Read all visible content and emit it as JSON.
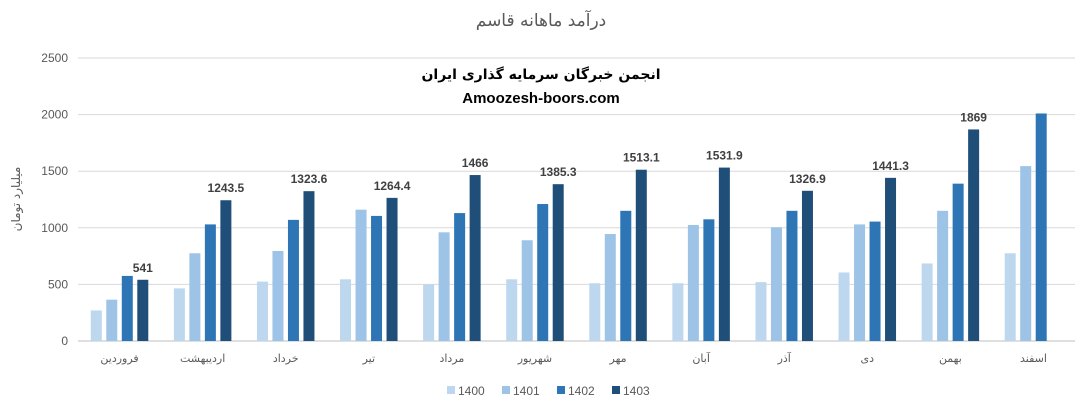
{
  "chart_data": {
    "type": "bar",
    "title": "درآمد ماهانه قاسم",
    "ylabel": "میلیارد تومان",
    "xlabel": "",
    "ylim": [
      0,
      2500
    ],
    "yticks": [
      0,
      500,
      1000,
      1500,
      2000,
      2500
    ],
    "grid": true,
    "legend_position": "bottom",
    "categories": [
      "فروردین",
      "اردیبهشت",
      "خرداد",
      "تیر",
      "مرداد",
      "شهریور",
      "مهر",
      "آبان",
      "آذر",
      "دی",
      "بهمن",
      "اسفند"
    ],
    "series": [
      {
        "name": "1400",
        "color": "#BDD7EE",
        "values": [
          270,
          465,
          525,
          545,
          500,
          545,
          510,
          510,
          520,
          605,
          685,
          775
        ]
      },
      {
        "name": "1401",
        "color": "#9DC3E6",
        "values": [
          365,
          775,
          795,
          1160,
          960,
          890,
          945,
          1025,
          1005,
          1030,
          1150,
          1545
        ]
      },
      {
        "name": "1402",
        "color": "#2E75B6",
        "values": [
          575,
          1030,
          1070,
          1105,
          1130,
          1210,
          1150,
          1075,
          1150,
          1055,
          1390,
          2010
        ]
      },
      {
        "name": "1403",
        "color": "#1F4E79",
        "values": [
          541,
          1243.5,
          1323.6,
          1264.4,
          1466,
          1385.3,
          1513.1,
          1531.9,
          1326.9,
          1441.3,
          1869,
          null
        ]
      }
    ],
    "data_labels": [
      "541",
      "1243.5",
      "1323.6",
      "1264.4",
      "1466",
      "1385.3",
      "1513.1",
      "1531.9",
      "1326.9",
      "1441.3",
      "1869",
      ""
    ]
  },
  "watermark": {
    "line1": "انجمن خبرگان سرمایه گذاری ایران",
    "line2": "Amoozesh-boors.com"
  }
}
